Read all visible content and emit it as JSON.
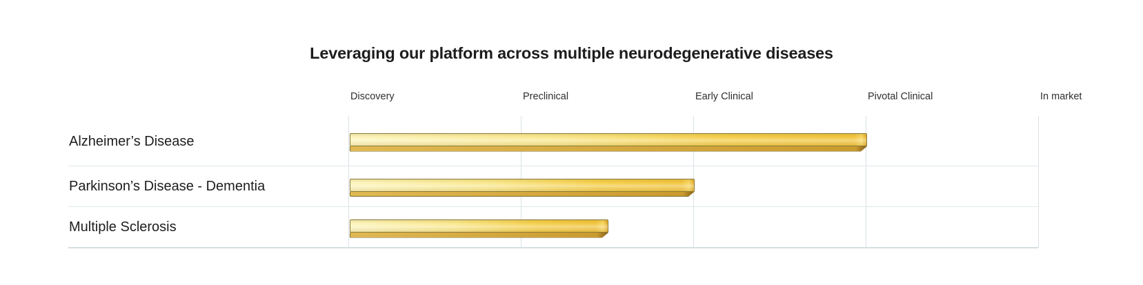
{
  "title": "Leveraging our platform across multiple neurodegenerative diseases",
  "colors": {
    "background": "#ffffff",
    "text-primary": "#1d1d1f",
    "text-secondary": "#2f2f31",
    "gridline": "#d9e2e4",
    "separator": "#e0e8e9",
    "baseline": "#d5dfe1",
    "bar-light": "#fcf4bb",
    "bar-gold": "#f1c43d",
    "bar-border": "#8c7a3c",
    "bar-shadow": "#ca9b2e",
    "bar-shadow-border": "#7e6c30",
    "bar-tip": "#8a671b"
  },
  "chart_data": {
    "type": "bar",
    "orientation": "horizontal",
    "title": "Leveraging our platform across multiple neurodegenerative diseases",
    "stages": [
      "Discovery",
      "Preclinical",
      "Early Clinical",
      "Pivotal Clinical",
      "In market"
    ],
    "x_axis": {
      "unit": "development stage",
      "min": 0,
      "max": 5,
      "gridlines": "at each stage boundary",
      "stage_values": [
        0,
        1,
        2,
        3,
        4
      ]
    },
    "rows": [
      {
        "label": "Alzheimer’s Disease",
        "start_stage": 0,
        "stage_progress": 3.0,
        "end_position": "start of Pivotal Clinical"
      },
      {
        "label": "Parkinson’s Disease - Dementia",
        "start_stage": 0,
        "stage_progress": 2.0,
        "end_position": "start of Early Clinical"
      },
      {
        "label": "Multiple Sclerosis",
        "start_stage": 0,
        "stage_progress": 1.5,
        "end_position": "middle of Preclinical"
      }
    ],
    "bar_style": "3D gold gradient ribbon with darker chamfered bottom edge",
    "legend": "none",
    "grid": "vertical stage lines + horizontal row separators"
  }
}
